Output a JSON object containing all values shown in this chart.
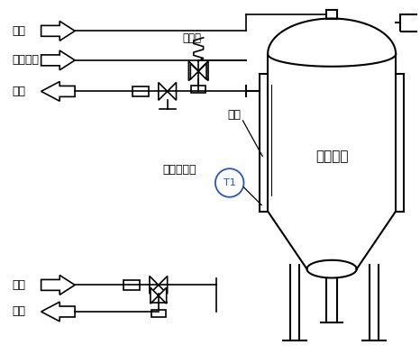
{
  "bg_color": "#ffffff",
  "line_color": "#000000",
  "labels": {
    "steam": "蒸汽",
    "compressed_air": "压缩空气",
    "coolant_top": "冷媒",
    "safety_valve": "安全阀",
    "jacket": "夹套",
    "temp_sensor": "温度传感器",
    "tank": "罐类设备",
    "coolant_bottom": "冷媒",
    "drain": "排污"
  },
  "font": "SimHei",
  "lw_main": 1.5,
  "lw_pipe": 1.2
}
